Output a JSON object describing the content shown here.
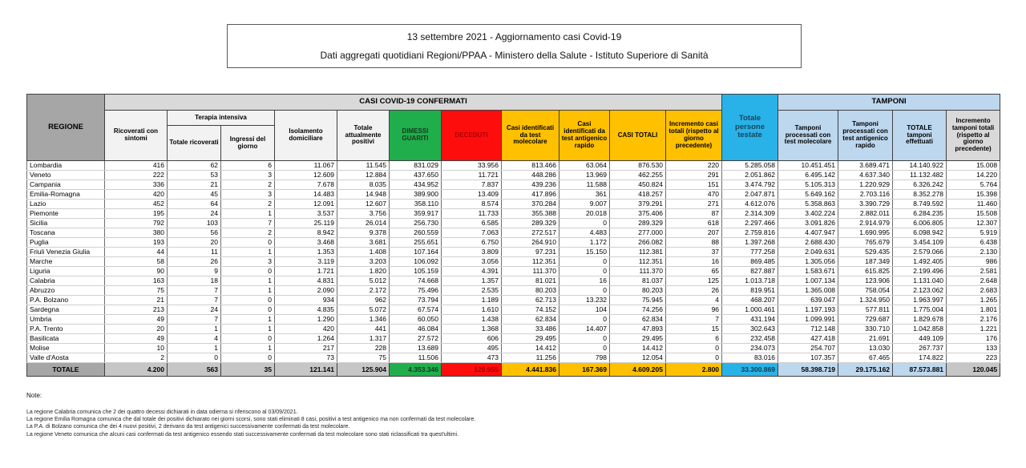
{
  "title": {
    "line1": "13 settembre 2021 - Aggiornamento casi Covid-19",
    "line2": "Dati aggregati quotidiani Regioni/PPAA - Ministero della Salute - Istituto Superiore di Sanità"
  },
  "colors": {
    "header_gray_dark": "#a6a6a6",
    "band_gray": "#d9d9d9",
    "subheader_gray": "#f2f2f2",
    "green": "#1fae4b",
    "red": "#fe0d0d",
    "red_text": "#b00000",
    "gold": "#ffc000",
    "cyan": "#29b2e8",
    "light_blue": "#bdd7ee",
    "total_gray": "#c6c6c6"
  },
  "table": {
    "bands": {
      "casi": "CASI COVID-19 CONFERMATI",
      "tamponi": "TAMPONI",
      "terapia_intensiva": "Terapia intensiva"
    },
    "columns": {
      "regione": "REGIONE",
      "ricoverati": "Ricoverati con sintomi",
      "totale_ricoverati": "Totale ricoverati",
      "ingressi": "Ingressi del giorno",
      "isolamento": "Isolamento domiciliare",
      "attualmente_positivi": "Totale attualmente positivi",
      "dimessi": "DIMESSI GUARITI",
      "deceduti": "DECEDUTI",
      "casi_molecolare": "Casi identificati da test molecolare",
      "casi_antigenico": "Casi identificati da test antigenico rapido",
      "casi_totali": "CASI TOTALI",
      "incremento_casi": "Incremento casi totali (rispetto al giorno precedente)",
      "persone_testate": "Totale persone testate",
      "tamponi_molecolare": "Tamponi processati con test molecolare",
      "tamponi_antigenico": "Tamponi processati con test antigenico rapido",
      "totale_tamponi": "TOTALE tamponi effettuati",
      "incremento_tamponi": "Incremento tamponi totali (rispetto al giorno precedente)"
    },
    "rows": [
      {
        "region": "Lombardia",
        "values": [
          "416",
          "62",
          "6",
          "11.067",
          "11.545",
          "831.029",
          "33.956",
          "813.466",
          "63.064",
          "876.530",
          "220",
          "5.285.058",
          "10.451.451",
          "3.689.471",
          "14.140.922",
          "15.008"
        ]
      },
      {
        "region": "Veneto",
        "values": [
          "222",
          "53",
          "3",
          "12.609",
          "12.884",
          "437.650",
          "11.721",
          "448.286",
          "13.969",
          "462.255",
          "291",
          "2.051.862",
          "6.495.142",
          "4.637.340",
          "11.132.482",
          "14.220"
        ]
      },
      {
        "region": "Campania",
        "values": [
          "336",
          "21",
          "2",
          "7.678",
          "8.035",
          "434.952",
          "7.837",
          "439.236",
          "11.588",
          "450.824",
          "151",
          "3.474.792",
          "5.105.313",
          "1.220.929",
          "6.326.242",
          "5.764"
        ]
      },
      {
        "region": "Emilia-Romagna",
        "values": [
          "420",
          "45",
          "3",
          "14.483",
          "14.948",
          "389.900",
          "13.409",
          "417.896",
          "361",
          "418.257",
          "470",
          "2.047.871",
          "5.649.162",
          "2.703.116",
          "8.352.278",
          "15.398"
        ]
      },
      {
        "region": "Lazio",
        "values": [
          "452",
          "64",
          "2",
          "12.091",
          "12.607",
          "358.110",
          "8.574",
          "370.284",
          "9.007",
          "379.291",
          "271",
          "4.612.076",
          "5.358.863",
          "3.390.729",
          "8.749.592",
          "11.460"
        ]
      },
      {
        "region": "Piemonte",
        "values": [
          "195",
          "24",
          "1",
          "3.537",
          "3.756",
          "359.917",
          "11.733",
          "355.388",
          "20.018",
          "375.406",
          "87",
          "2.314.309",
          "3.402.224",
          "2.882.011",
          "6.284.235",
          "15.508"
        ]
      },
      {
        "region": "Sicilia",
        "values": [
          "792",
          "103",
          "7",
          "25.119",
          "26.014",
          "256.730",
          "6.585",
          "289.329",
          "0",
          "289.329",
          "618",
          "2.297.466",
          "3.091.826",
          "2.914.979",
          "6.006.805",
          "12.307"
        ]
      },
      {
        "region": "Toscana",
        "values": [
          "380",
          "56",
          "2",
          "8.942",
          "9.378",
          "260.559",
          "7.063",
          "272.517",
          "4.483",
          "277.000",
          "207",
          "2.759.816",
          "4.407.947",
          "1.690.995",
          "6.098.942",
          "5.919"
        ]
      },
      {
        "region": "Puglia",
        "values": [
          "193",
          "20",
          "0",
          "3.468",
          "3.681",
          "255.651",
          "6.750",
          "264.910",
          "1.172",
          "266.082",
          "88",
          "1.397.268",
          "2.688.430",
          "765.679",
          "3.454.109",
          "6.438"
        ]
      },
      {
        "region": "Friuli Venezia Giulia",
        "values": [
          "44",
          "11",
          "1",
          "1.353",
          "1.408",
          "107.164",
          "3.809",
          "97.231",
          "15.150",
          "112.381",
          "37",
          "777.258",
          "2.049.631",
          "529.435",
          "2.579.066",
          "2.130"
        ]
      },
      {
        "region": "Marche",
        "values": [
          "58",
          "26",
          "3",
          "3.119",
          "3.203",
          "106.092",
          "3.056",
          "112.351",
          "0",
          "112.351",
          "16",
          "869.485",
          "1.305.056",
          "187.349",
          "1.492.405",
          "986"
        ]
      },
      {
        "region": "Liguria",
        "values": [
          "90",
          "9",
          "0",
          "1.721",
          "1.820",
          "105.159",
          "4.391",
          "111.370",
          "0",
          "111.370",
          "65",
          "827.887",
          "1.583.671",
          "615.825",
          "2.199.496",
          "2.581"
        ]
      },
      {
        "region": "Calabria",
        "values": [
          "163",
          "18",
          "1",
          "4.831",
          "5.012",
          "74.668",
          "1.357",
          "81.021",
          "16",
          "81.037",
          "125",
          "1.013.718",
          "1.007.134",
          "123.906",
          "1.131.040",
          "2.648"
        ]
      },
      {
        "region": "Abruzzo",
        "values": [
          "75",
          "7",
          "1",
          "2.090",
          "2.172",
          "75.496",
          "2.535",
          "80.203",
          "0",
          "80.203",
          "26",
          "819.951",
          "1.365.008",
          "758.054",
          "2.123.062",
          "2.683"
        ]
      },
      {
        "region": "P.A. Bolzano",
        "values": [
          "21",
          "7",
          "0",
          "934",
          "962",
          "73.794",
          "1.189",
          "62.713",
          "13.232",
          "75.945",
          "4",
          "468.207",
          "639.047",
          "1.324.950",
          "1.963.997",
          "1.265"
        ]
      },
      {
        "region": "Sardegna",
        "values": [
          "213",
          "24",
          "0",
          "4.835",
          "5.072",
          "67.574",
          "1.610",
          "74.152",
          "104",
          "74.256",
          "96",
          "1.000.461",
          "1.197.193",
          "577.811",
          "1.775.004",
          "1.801"
        ]
      },
      {
        "region": "Umbria",
        "values": [
          "49",
          "7",
          "1",
          "1.290",
          "1.346",
          "60.050",
          "1.438",
          "62.834",
          "0",
          "62.834",
          "7",
          "431.194",
          "1.099.991",
          "729.687",
          "1.829.678",
          "2.176"
        ]
      },
      {
        "region": "P.A. Trento",
        "values": [
          "20",
          "1",
          "1",
          "420",
          "441",
          "46.084",
          "1.368",
          "33.486",
          "14.407",
          "47.893",
          "15",
          "302.643",
          "712.148",
          "330.710",
          "1.042.858",
          "1.221"
        ]
      },
      {
        "region": "Basilicata",
        "values": [
          "49",
          "4",
          "0",
          "1.264",
          "1.317",
          "27.572",
          "606",
          "29.495",
          "0",
          "29.495",
          "6",
          "232.458",
          "427.418",
          "21.691",
          "449.109",
          "176"
        ]
      },
      {
        "region": "Molise",
        "values": [
          "10",
          "1",
          "1",
          "217",
          "228",
          "13.689",
          "495",
          "14.412",
          "0",
          "14.412",
          "0",
          "234.073",
          "254.707",
          "13.030",
          "267.737",
          "133"
        ]
      },
      {
        "region": "Valle d'Aosta",
        "values": [
          "2",
          "0",
          "0",
          "73",
          "75",
          "11.506",
          "473",
          "11.256",
          "798",
          "12.054",
          "0",
          "83.016",
          "107.357",
          "67.465",
          "174.822",
          "223"
        ]
      }
    ],
    "total_row": {
      "region": "TOTALE",
      "values": [
        "4.200",
        "563",
        "35",
        "121.141",
        "125.904",
        "4.353.346",
        "129.955",
        "4.441.836",
        "167.369",
        "4.609.205",
        "2.800",
        "33.300.869",
        "58.398.719",
        "29.175.162",
        "87.573.881",
        "120.045"
      ]
    }
  },
  "notes": {
    "label": "Note:",
    "lines": [
      "La regione Calabria comunica che 2 dei quattro decessi dichiarati in data odierna si riferiscono al 03/09/2021.",
      "La regione Emilia Romagna comunica che dal totale dei positivi dichiarato nei giorni scorsi, sono stati eliminati 8 casi, positivi a test antigenico ma non confermati da test molecolare.",
      "La P.A. di Bolzano comunica che dei 4 nuovi positivi, 2 derivano da test antigenici successivamente confermati da test molecolare.",
      "La regione Veneto comunica che alcuni casi confermati da test antigenico essendo stati successivamente confermati da test molecolare sono stati riclassificati tra quest'ultimi."
    ]
  }
}
